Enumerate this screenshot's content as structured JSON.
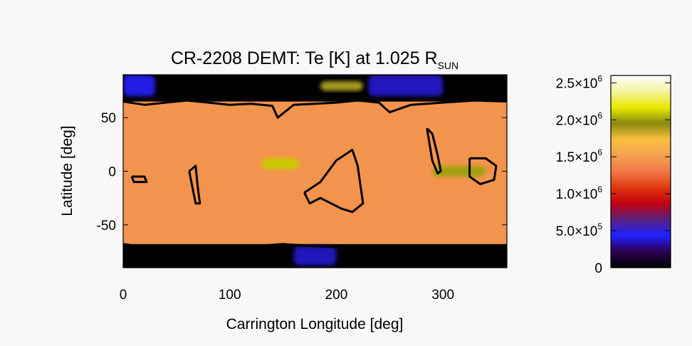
{
  "chart_data": {
    "type": "heatmap",
    "title": "CR-2208 DEMT: Te [K] at 1.025 R",
    "title_subscript": "SUN",
    "xlabel": "Carrington Longitude [deg]",
    "ylabel": "Latitude [deg]",
    "xlim": [
      0,
      360
    ],
    "ylim": [
      -90,
      90
    ],
    "xticks": [
      0,
      100,
      200,
      300
    ],
    "yticks": [
      -50,
      0,
      50
    ],
    "colorbar": {
      "range": [
        0,
        2600000
      ],
      "ticks": [
        {
          "value": 0,
          "label": "0",
          "mant": "",
          "exp": ""
        },
        {
          "value": 500000,
          "label": "",
          "mant": "5.0×10",
          "exp": "5"
        },
        {
          "value": 1000000,
          "label": "",
          "mant": "1.0×10",
          "exp": "6"
        },
        {
          "value": 1500000,
          "label": "",
          "mant": "1.5×10",
          "exp": "6"
        },
        {
          "value": 2000000,
          "label": "",
          "mant": "2.0×10",
          "exp": "6"
        },
        {
          "value": 2500000,
          "label": "",
          "mant": "2.5×10",
          "exp": "6"
        }
      ],
      "colormap": [
        "#000000",
        "#2a0050",
        "#2020ff",
        "#5a2080",
        "#c00010",
        "#e03810",
        "#f07848",
        "#f5a050",
        "#f8c040",
        "#8a8a10",
        "#e8e800",
        "#f4f4a0",
        "#ffffff"
      ]
    },
    "background_temperature": 1450000,
    "features": [
      {
        "kind": "coronal-hole",
        "lon": [
          0,
          360
        ],
        "lat": [
          65,
          90
        ],
        "temperature": 0
      },
      {
        "kind": "coronal-hole",
        "lon": [
          0,
          360
        ],
        "lat": [
          -90,
          -68
        ],
        "temperature": 0
      },
      {
        "kind": "low-temperature-region",
        "lon": [
          0,
          30
        ],
        "lat": [
          70,
          90
        ],
        "temperature": 400000
      },
      {
        "kind": "low-temperature-region",
        "lon": [
          230,
          300
        ],
        "lat": [
          70,
          90
        ],
        "temperature": 350000
      },
      {
        "kind": "low-temperature-region",
        "lon": [
          160,
          200
        ],
        "lat": [
          -88,
          -70
        ],
        "temperature": 350000
      },
      {
        "kind": "hot-region",
        "lon": [
          130,
          165
        ],
        "lat": [
          2,
          12
        ],
        "temperature": 2100000
      },
      {
        "kind": "hot-region",
        "lon": [
          290,
          340
        ],
        "lat": [
          -5,
          5
        ],
        "temperature": 2000000
      },
      {
        "kind": "hot-region",
        "lon": [
          185,
          225
        ],
        "lat": [
          75,
          84
        ],
        "temperature": 1900000
      }
    ],
    "contours": [
      {
        "lon": [
          0,
          20,
          40,
          60,
          80,
          100,
          120,
          140,
          145,
          160,
          180,
          200,
          220,
          240,
          250,
          270,
          300,
          330,
          360
        ],
        "lat": [
          65,
          62,
          64,
          66,
          64,
          62,
          63,
          61,
          50,
          62,
          63,
          64,
          66,
          64,
          55,
          62,
          64,
          66,
          65
        ]
      },
      {
        "lon": [
          0,
          30,
          60,
          90,
          120,
          150,
          180,
          210,
          240,
          270,
          300,
          330,
          360
        ],
        "lat": [
          -68,
          -72,
          -74,
          -72,
          -70,
          -68,
          -70,
          -71,
          -73,
          -70,
          -72,
          -71,
          -69
        ]
      },
      {
        "lon": [
          285,
          290,
          295,
          298,
          295,
          290,
          285
        ],
        "lat": [
          40,
          35,
          15,
          0,
          -2,
          10,
          40
        ]
      },
      {
        "lon": [
          325,
          340,
          350,
          348,
          335,
          325,
          325
        ],
        "lat": [
          12,
          12,
          5,
          -8,
          -12,
          -5,
          12
        ]
      },
      {
        "lon": [
          62,
          68,
          70,
          72,
          68,
          65,
          62
        ],
        "lat": [
          0,
          5,
          -15,
          -30,
          -30,
          -15,
          0
        ]
      },
      {
        "lon": [
          170,
          185,
          200,
          215,
          220,
          225,
          215,
          205,
          195,
          185,
          175,
          170
        ],
        "lat": [
          -20,
          -10,
          10,
          20,
          5,
          -30,
          -38,
          -35,
          -30,
          -25,
          -30,
          -20
        ]
      },
      {
        "lon": [
          8,
          20,
          22,
          10,
          8
        ],
        "lat": [
          -5,
          -5,
          -10,
          -10,
          -5
        ]
      }
    ]
  }
}
